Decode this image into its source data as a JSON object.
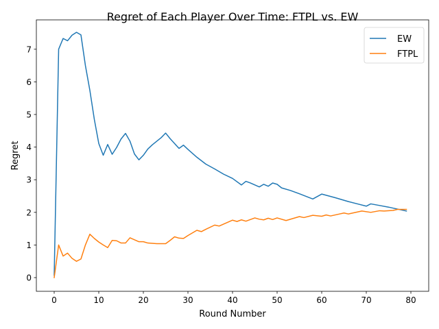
{
  "chart_data": {
    "type": "line",
    "title": "Regret of Each Player Over Time: FTPL vs. EW",
    "xlabel": "Round Number",
    "ylabel": "Regret",
    "xlim": [
      -4,
      84
    ],
    "ylim": [
      -0.42,
      7.9
    ],
    "xticks": [
      0,
      10,
      20,
      30,
      40,
      50,
      60,
      70,
      80
    ],
    "yticks": [
      0,
      1,
      2,
      3,
      4,
      5,
      6,
      7
    ],
    "grid": false,
    "legend_position": "upper right",
    "series": [
      {
        "name": "EW",
        "color": "#1f77b4",
        "points": [
          [
            0,
            0.07
          ],
          [
            1,
            7.0
          ],
          [
            2,
            7.33
          ],
          [
            3,
            7.26
          ],
          [
            4,
            7.43
          ],
          [
            5,
            7.52
          ],
          [
            6,
            7.44
          ],
          [
            7,
            6.5
          ],
          [
            8,
            5.74
          ],
          [
            9,
            4.85
          ],
          [
            10,
            4.11
          ],
          [
            11,
            3.75
          ],
          [
            12,
            4.08
          ],
          [
            13,
            3.78
          ],
          [
            14,
            3.99
          ],
          [
            15,
            4.25
          ],
          [
            16,
            4.42
          ],
          [
            17,
            4.18
          ],
          [
            18,
            3.79
          ],
          [
            19,
            3.61
          ],
          [
            20,
            3.75
          ],
          [
            21,
            3.94
          ],
          [
            22,
            4.07
          ],
          [
            23,
            4.18
          ],
          [
            24,
            4.29
          ],
          [
            25,
            4.43
          ],
          [
            26,
            4.26
          ],
          [
            27,
            4.11
          ],
          [
            28,
            3.96
          ],
          [
            29,
            4.06
          ],
          [
            30,
            3.93
          ],
          [
            32,
            3.69
          ],
          [
            34,
            3.48
          ],
          [
            36,
            3.33
          ],
          [
            38,
            3.17
          ],
          [
            40,
            3.04
          ],
          [
            42,
            2.84
          ],
          [
            43,
            2.95
          ],
          [
            44,
            2.9
          ],
          [
            46,
            2.78
          ],
          [
            47,
            2.86
          ],
          [
            48,
            2.8
          ],
          [
            49,
            2.9
          ],
          [
            50,
            2.86
          ],
          [
            51,
            2.75
          ],
          [
            53,
            2.67
          ],
          [
            55,
            2.57
          ],
          [
            58,
            2.41
          ],
          [
            60,
            2.56
          ],
          [
            63,
            2.45
          ],
          [
            66,
            2.33
          ],
          [
            68,
            2.26
          ],
          [
            70,
            2.19
          ],
          [
            71,
            2.26
          ],
          [
            73,
            2.21
          ],
          [
            75,
            2.16
          ],
          [
            77,
            2.1
          ],
          [
            79,
            2.04
          ]
        ]
      },
      {
        "name": "FTPL",
        "color": "#ff7f0e",
        "points": [
          [
            0,
            0.0
          ],
          [
            1,
            1.0
          ],
          [
            2,
            0.66
          ],
          [
            3,
            0.75
          ],
          [
            4,
            0.59
          ],
          [
            5,
            0.5
          ],
          [
            6,
            0.57
          ],
          [
            7,
            1.0
          ],
          [
            8,
            1.33
          ],
          [
            9,
            1.2
          ],
          [
            10,
            1.09
          ],
          [
            11,
            1.0
          ],
          [
            12,
            0.92
          ],
          [
            13,
            1.14
          ],
          [
            14,
            1.13
          ],
          [
            15,
            1.06
          ],
          [
            16,
            1.06
          ],
          [
            17,
            1.22
          ],
          [
            18,
            1.16
          ],
          [
            19,
            1.1
          ],
          [
            20,
            1.1
          ],
          [
            21,
            1.06
          ],
          [
            22,
            1.05
          ],
          [
            23,
            1.04
          ],
          [
            24,
            1.04
          ],
          [
            25,
            1.04
          ],
          [
            26,
            1.14
          ],
          [
            27,
            1.25
          ],
          [
            28,
            1.21
          ],
          [
            29,
            1.2
          ],
          [
            30,
            1.29
          ],
          [
            32,
            1.45
          ],
          [
            33,
            1.41
          ],
          [
            34,
            1.48
          ],
          [
            36,
            1.61
          ],
          [
            37,
            1.58
          ],
          [
            38,
            1.64
          ],
          [
            40,
            1.76
          ],
          [
            41,
            1.72
          ],
          [
            42,
            1.77
          ],
          [
            43,
            1.73
          ],
          [
            45,
            1.83
          ],
          [
            46,
            1.79
          ],
          [
            47,
            1.77
          ],
          [
            48,
            1.82
          ],
          [
            49,
            1.78
          ],
          [
            50,
            1.83
          ],
          [
            52,
            1.75
          ],
          [
            55,
            1.87
          ],
          [
            56,
            1.84
          ],
          [
            58,
            1.91
          ],
          [
            60,
            1.88
          ],
          [
            61,
            1.92
          ],
          [
            62,
            1.89
          ],
          [
            64,
            1.95
          ],
          [
            65,
            1.98
          ],
          [
            66,
            1.95
          ],
          [
            69,
            2.04
          ],
          [
            71,
            2.0
          ],
          [
            73,
            2.05
          ],
          [
            74,
            2.04
          ],
          [
            76,
            2.06
          ],
          [
            77,
            2.09
          ],
          [
            79,
            2.09
          ]
        ]
      }
    ]
  }
}
